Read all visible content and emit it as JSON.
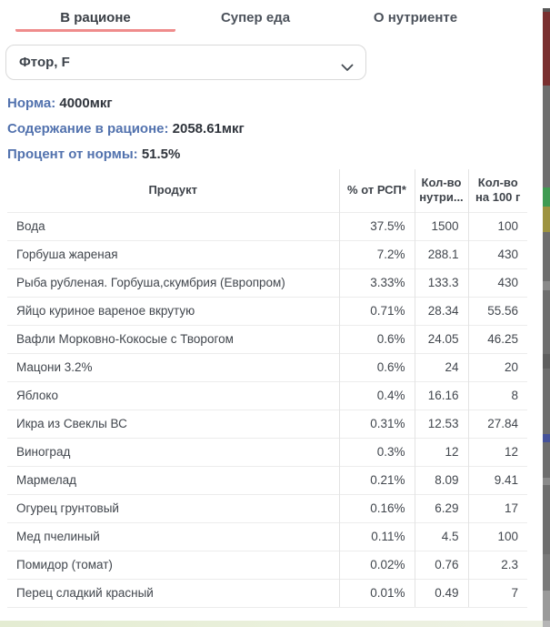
{
  "tabs": [
    {
      "label": "В рационе",
      "active": true
    },
    {
      "label": "Супер еда",
      "active": false
    },
    {
      "label": "О нутриенте",
      "active": false
    }
  ],
  "nutrient_select": {
    "value": "Фтор, F",
    "icon": "chevron-down-icon"
  },
  "stats": [
    {
      "label": "Норма:",
      "value": "4000мкг"
    },
    {
      "label": "Содержание в рационе:",
      "value": "2058.61мкг"
    },
    {
      "label": "Процент от нормы:",
      "value": "51.5%"
    }
  ],
  "table": {
    "columns": [
      "Продукт",
      "% от РСП*",
      "Кол-во нутри...",
      "Кол-во на 100 г"
    ],
    "rows": [
      [
        "Вода",
        "37.5%",
        "1500",
        "100"
      ],
      [
        "Горбуша жареная",
        "7.2%",
        "288.1",
        "430"
      ],
      [
        "Рыба рубленая. Горбуша,скумбрия (Европром)",
        "3.33%",
        "133.3",
        "430"
      ],
      [
        "Яйцо куриное вареное вкрутую",
        "0.71%",
        "28.34",
        "55.56"
      ],
      [
        "Вафли Морковно-Кокосые с Творогом",
        "0.6%",
        "24.05",
        "46.25"
      ],
      [
        "Мацони 3.2%",
        "0.6%",
        "24",
        "20"
      ],
      [
        "Яблоко",
        "0.4%",
        "16.16",
        "8"
      ],
      [
        "Икра из Свеклы ВС",
        "0.31%",
        "12.53",
        "27.84"
      ],
      [
        "Виноград",
        "0.3%",
        "12",
        "12"
      ],
      [
        "Мармелад",
        "0.21%",
        "8.09",
        "9.41"
      ],
      [
        "Огурец грунтовый",
        "0.16%",
        "6.29",
        "17"
      ],
      [
        "Мед пчелиный",
        "0.11%",
        "4.5",
        "100"
      ],
      [
        "Помидор (томат)",
        "0.02%",
        "0.76",
        "2.3"
      ],
      [
        "Перец сладкий красный",
        "0.01%",
        "0.49",
        "7"
      ]
    ]
  },
  "colors": {
    "active_tab_underline": "#ef8c8c",
    "stat_label_blue": "#5272ae",
    "text_dark": "#3a3f46",
    "table_border": "#ececec"
  }
}
